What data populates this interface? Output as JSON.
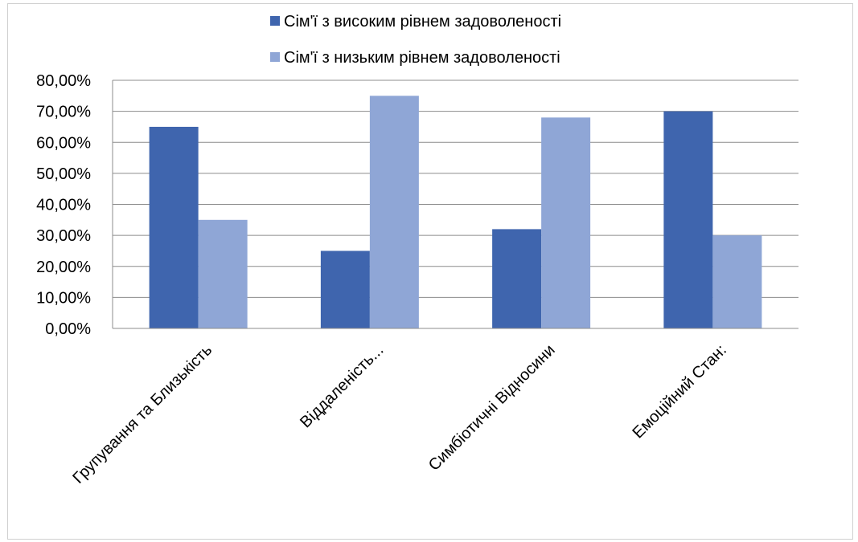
{
  "chart_data": {
    "type": "bar",
    "categories": [
      "Групування та Близькість",
      "Віддаленість...",
      "Симбіотичні Відносини",
      "Емоційний Стан:"
    ],
    "series": [
      {
        "name": "Сім'ї з високим рівнем задоволеності",
        "color": "#3f65ae",
        "values": [
          65,
          25,
          32,
          70
        ]
      },
      {
        "name": "Сім'ї з низьким рівнем задоволеності",
        "color": "#8fa6d6",
        "values": [
          35,
          75,
          68,
          30
        ]
      }
    ],
    "ylim": [
      0,
      80
    ],
    "ytick_step": 10,
    "ytick_labels": [
      "0,00%",
      "10,00%",
      "20,00%",
      "30,00%",
      "40,00%",
      "50,00%",
      "60,00%",
      "70,00%",
      "80,00%"
    ],
    "legend_position": "top",
    "grid": true,
    "gridline_color": "#8c8c8c"
  }
}
